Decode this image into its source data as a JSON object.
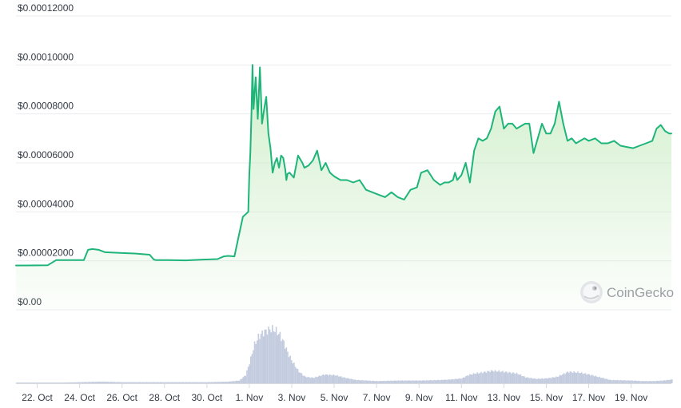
{
  "chart_data": {
    "type": "area",
    "currency_axis": true,
    "y_ticks": [
      "$0.00",
      "$0.00002000",
      "$0.00004000",
      "$0.00006000",
      "$0.00008000",
      "$0.00010000",
      "$0.00012000"
    ],
    "y_tick_values": [
      0,
      2e-05,
      4e-05,
      6e-05,
      8e-05,
      0.0001,
      0.00012
    ],
    "ylim": [
      0,
      0.00012
    ],
    "x_ticks": [
      "22. Oct",
      "24. Oct",
      "26. Oct",
      "28. Oct",
      "30. Oct",
      "1. Nov",
      "3. Nov",
      "5. Nov",
      "7. Nov",
      "9. Nov",
      "11. Nov",
      "13. Nov",
      "15. Nov",
      "17. Nov",
      "19. Nov"
    ],
    "x_tick_days": [
      1,
      3,
      5,
      7,
      9,
      11,
      13,
      15,
      17,
      19,
      21,
      23,
      25,
      27,
      29
    ],
    "xlim_days": [
      0,
      30.9
    ],
    "grid": true,
    "colors": {
      "line": "#1fb57a",
      "area_top": "#c9ecc3",
      "volume": "#b9c3d9",
      "grid": "#e9ecef"
    },
    "watermark": "CoinGecko",
    "price_series": {
      "day": [
        0,
        0.5,
        1.5,
        1.9,
        2.0,
        3.2,
        3.4,
        3.6,
        3.9,
        4.2,
        5.0,
        5.6,
        6.3,
        6.5,
        6.6,
        7.2,
        8.0,
        8.8,
        9.5,
        9.8,
        10.0,
        10.3,
        10.5,
        10.7,
        10.85,
        10.95,
        11.0,
        11.05,
        11.1,
        11.15,
        11.2,
        11.3,
        11.4,
        11.5,
        11.6,
        11.7,
        11.8,
        11.9,
        12.0,
        12.1,
        12.2,
        12.3,
        12.4,
        12.5,
        12.6,
        12.7,
        12.75,
        12.8,
        12.9,
        13.1,
        13.3,
        13.5,
        13.6,
        13.8,
        14.0,
        14.2,
        14.4,
        14.6,
        14.8,
        15.0,
        15.3,
        15.6,
        15.9,
        16.2,
        16.5,
        16.8,
        17.1,
        17.4,
        17.7,
        18.0,
        18.3,
        18.6,
        18.9,
        19.1,
        19.4,
        19.7,
        20.0,
        20.2,
        20.4,
        20.6,
        20.7,
        20.8,
        21.0,
        21.2,
        21.4,
        21.6,
        21.8,
        22.0,
        22.2,
        22.4,
        22.6,
        22.8,
        23.0,
        23.2,
        23.4,
        23.6,
        23.8,
        24.0,
        24.2,
        24.4,
        24.6,
        24.8,
        25.0,
        25.2,
        25.4,
        25.6,
        25.8,
        26.0,
        26.2,
        26.4,
        26.6,
        26.8,
        27.0,
        27.3,
        27.6,
        27.9,
        28.2,
        28.5,
        28.8,
        29.1,
        29.4,
        29.7,
        30.0,
        30.2,
        30.4,
        30.6,
        30.8,
        30.9
      ],
      "price": [
        1.81e-05,
        1.81e-05,
        1.82e-05,
        2.03e-05,
        2.03e-05,
        2.03e-05,
        2.45e-05,
        2.48e-05,
        2.45e-05,
        2.35e-05,
        2.32e-05,
        2.3e-05,
        2.25e-05,
        2.05e-05,
        2.03e-05,
        2.03e-05,
        2.02e-05,
        2.05e-05,
        2.07e-05,
        2.18e-05,
        2.2e-05,
        2.18e-05,
        3e-05,
        3.8e-05,
        3.92e-05,
        4e-05,
        5.5e-05,
        6.4e-05,
        8e-05,
        0.0001,
        8.2e-05,
        9.5e-05,
        7.8e-05,
        9.9e-05,
        7.6e-05,
        8.2e-05,
        8.7e-05,
        7.2e-05,
        6.6e-05,
        5.6e-05,
        6e-05,
        6.2e-05,
        5.8e-05,
        6.3e-05,
        6.2e-05,
        5.7e-05,
        5.3e-05,
        5.55e-05,
        5.6e-05,
        5.4e-05,
        6.3e-05,
        6e-05,
        5.8e-05,
        5.9e-05,
        6.1e-05,
        6.5e-05,
        5.7e-05,
        6e-05,
        5.6e-05,
        5.45e-05,
        5.3e-05,
        5.3e-05,
        5.2e-05,
        5.3e-05,
        4.9e-05,
        4.8e-05,
        4.7e-05,
        4.6e-05,
        4.8e-05,
        4.6e-05,
        4.5e-05,
        4.9e-05,
        5e-05,
        5.6e-05,
        5.7e-05,
        5.3e-05,
        5.1e-05,
        5.2e-05,
        5.2e-05,
        5.3e-05,
        5.6e-05,
        5.3e-05,
        5.5e-05,
        6e-05,
        5.2e-05,
        6.5e-05,
        7e-05,
        6.9e-05,
        7e-05,
        7.4e-05,
        8.1e-05,
        8.3e-05,
        7.4e-05,
        7.6e-05,
        7.6e-05,
        7.4e-05,
        7.5e-05,
        7.6e-05,
        7.6e-05,
        6.4e-05,
        7e-05,
        7.6e-05,
        7.2e-05,
        7.2e-05,
        7.6e-05,
        8.5e-05,
        7.6e-05,
        6.9e-05,
        7e-05,
        6.8e-05,
        6.9e-05,
        7e-05,
        6.9e-05,
        7e-05,
        6.8e-05,
        6.8e-05,
        6.9e-05,
        6.7e-05,
        6.65e-05,
        6.6e-05,
        6.7e-05,
        6.8e-05,
        6.9e-05,
        7.4e-05,
        7.55e-05,
        7.3e-05,
        7.2e-05,
        7.2e-05
      ]
    },
    "volume_series": {
      "day": [
        0,
        1,
        2,
        3,
        4,
        5,
        6,
        7,
        8,
        9,
        10,
        10.5,
        10.8,
        11.0,
        11.2,
        11.4,
        11.6,
        11.8,
        12.0,
        12.2,
        12.4,
        12.6,
        12.8,
        13.0,
        13.3,
        13.6,
        14.0,
        14.5,
        15.0,
        15.5,
        16.0,
        17.0,
        18.0,
        19.0,
        20.0,
        20.5,
        21.0,
        21.3,
        21.6,
        22.0,
        22.4,
        22.8,
        23.2,
        23.6,
        24.0,
        24.5,
        25.0,
        25.5,
        26.0,
        26.5,
        27.0,
        28.0,
        29.0,
        29.5,
        30.0,
        30.5,
        30.9
      ],
      "level": [
        0.01,
        0.01,
        0.01,
        0.02,
        0.03,
        0.02,
        0.02,
        0.02,
        0.02,
        0.02,
        0.03,
        0.05,
        0.15,
        0.4,
        0.7,
        0.85,
        0.93,
        0.97,
        1.0,
        0.98,
        0.9,
        0.75,
        0.55,
        0.4,
        0.22,
        0.12,
        0.1,
        0.16,
        0.15,
        0.1,
        0.06,
        0.04,
        0.05,
        0.05,
        0.06,
        0.07,
        0.09,
        0.15,
        0.18,
        0.2,
        0.23,
        0.22,
        0.2,
        0.18,
        0.11,
        0.08,
        0.09,
        0.12,
        0.21,
        0.2,
        0.16,
        0.06,
        0.05,
        0.04,
        0.04,
        0.05,
        0.07
      ]
    }
  }
}
